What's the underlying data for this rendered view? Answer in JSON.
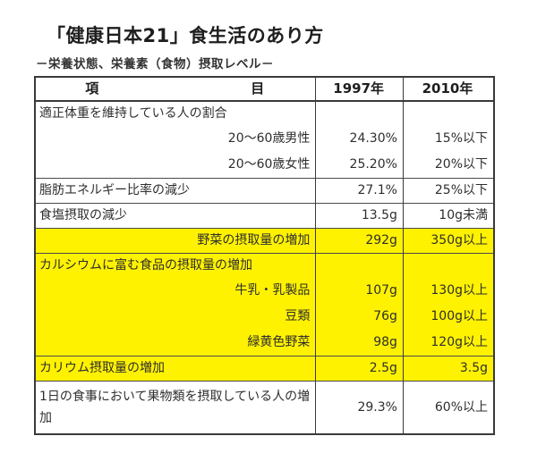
{
  "title": "「健康日本21」食生活のあり方",
  "subtitle": "－栄養状態、栄養素（食物）摂取レベル－",
  "table": {
    "headers": {
      "item_part1": "項",
      "item_part2": "目",
      "col_1997": "1997年",
      "col_2010": "2010年"
    },
    "colors": {
      "highlight": "#fff200",
      "border": "#3a3a3a"
    },
    "groups": [
      {
        "label": "適正体重を維持している人の割合",
        "highlighted": false,
        "rows": [
          {
            "label": "20～60歳男性",
            "v1997": "24.30%",
            "v2010": "15%以下"
          },
          {
            "label": "20～60歳女性",
            "v1997": "25.20%",
            "v2010": "20%以下"
          }
        ]
      },
      {
        "label": "脂肪エネルギー比率の減少",
        "highlighted": false,
        "v1997": "27.1%",
        "v2010": "25%以下"
      },
      {
        "label": "食塩摂取の減少",
        "highlighted": false,
        "v1997": "13.5g",
        "v2010": "10g未満"
      },
      {
        "label": "野菜の摂取量の増加",
        "highlighted": true,
        "v1997": "292g",
        "v2010": "350g以上"
      },
      {
        "label": "カルシウムに富む食品の摂取量の増加",
        "highlighted": true,
        "rows": [
          {
            "label": "牛乳・乳製品",
            "v1997": "107g",
            "v2010": "130g以上"
          },
          {
            "label": "豆類",
            "v1997": "76g",
            "v2010": "100g以上"
          },
          {
            "label": "緑黄色野菜",
            "v1997": "98g",
            "v2010": "120g以上"
          }
        ]
      },
      {
        "label": "カリウム摂取量の増加",
        "highlighted": true,
        "v1997": "2.5g",
        "v2010": "3.5g"
      },
      {
        "label": "1日の食事において果物類を摂取している人の増加",
        "highlighted": false,
        "v1997": "29.3%",
        "v2010": "60%以上"
      }
    ]
  }
}
